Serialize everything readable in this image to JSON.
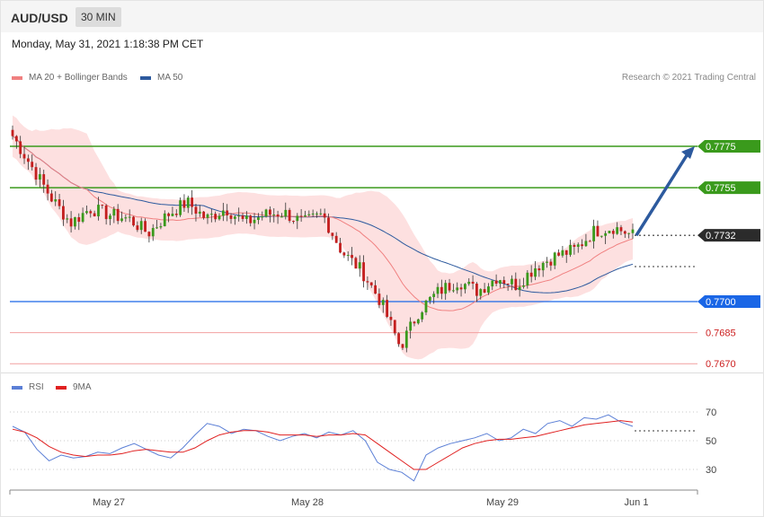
{
  "header": {
    "symbol": "AUD/USD",
    "timeframe": "30 MIN",
    "datetime": "Monday, May 31, 2021 1:18:38 PM CET"
  },
  "legend_main": [
    {
      "label": "MA 20 + Bollinger Bands",
      "color": "#f08080"
    },
    {
      "label": "MA 50",
      "color": "#2d5a9e"
    }
  ],
  "copyright": "Research © 2021 Trading Central",
  "legend_rsi": [
    {
      "label": "RSI",
      "color": "#5b7fd6"
    },
    {
      "label": "9MA",
      "color": "#e02020"
    }
  ],
  "colors": {
    "bull": "#3a9a1c",
    "bear": "#c41e1e",
    "band_fill": "#fde0e0",
    "ma20": "#f08080",
    "ma50": "#2d5a9e",
    "arrow": "#2d5a9e"
  },
  "chart_data": [
    {
      "type": "candlestick",
      "title": "AUD/USD 30 MIN",
      "ylim": [
        0.766,
        0.78
      ],
      "x_tick_labels": [
        "May 27",
        "May 28",
        "May 29",
        "Jun 1"
      ],
      "price_levels": [
        {
          "value": 0.7775,
          "label": "0.7775",
          "style": "resistance",
          "color": "#3a9a1c"
        },
        {
          "value": 0.7755,
          "label": "0.7755",
          "style": "resistance",
          "color": "#3a9a1c"
        },
        {
          "value": 0.7732,
          "label": "0.7732",
          "style": "current",
          "color": "#333333"
        },
        {
          "value": 0.77,
          "label": "0.7700",
          "style": "pivot",
          "color": "#1a66e6"
        },
        {
          "value": 0.7685,
          "label": "0.7685",
          "style": "support",
          "color": "#e05050"
        },
        {
          "value": 0.767,
          "label": "0.7670",
          "style": "support",
          "color": "#e05050"
        }
      ],
      "arrow": {
        "from_price": 0.7732,
        "to_price": 0.7775,
        "direction": "up"
      },
      "key_closes": [
        0.778,
        0.7765,
        0.775,
        0.7738,
        0.7745,
        0.7742,
        0.774,
        0.7733,
        0.7742,
        0.7748,
        0.774,
        0.7745,
        0.7738,
        0.7742,
        0.7743,
        0.7738,
        0.7742,
        0.7724,
        0.7715,
        0.77,
        0.7678,
        0.7696,
        0.7705,
        0.771,
        0.7705,
        0.7712,
        0.7708,
        0.7717,
        0.7722,
        0.7725,
        0.7734,
        0.7736,
        0.7732
      ]
    },
    {
      "type": "line",
      "title": "RSI",
      "ylim": [
        20,
        80
      ],
      "y_ticks": [
        30,
        50,
        70
      ],
      "series": [
        {
          "name": "RSI",
          "values": [
            60,
            56,
            44,
            36,
            40,
            38,
            39,
            42,
            41,
            45,
            48,
            44,
            40,
            38,
            45,
            54,
            62,
            60,
            55,
            58,
            57,
            53,
            50,
            53,
            55,
            52,
            56,
            54,
            57,
            50,
            35,
            30,
            28,
            22,
            40,
            45,
            48,
            50,
            52,
            55,
            50,
            52,
            58,
            55,
            62,
            64,
            60,
            66,
            65,
            68,
            63,
            60
          ]
        },
        {
          "name": "9MA",
          "values": [
            58,
            56,
            52,
            46,
            42,
            40,
            39,
            40,
            40,
            41,
            43,
            44,
            43,
            42,
            42,
            45,
            50,
            54,
            56,
            57,
            57,
            56,
            54,
            54,
            54,
            53,
            54,
            54,
            55,
            54,
            48,
            42,
            36,
            30,
            30,
            35,
            40,
            45,
            48,
            50,
            51,
            51,
            52,
            53,
            55,
            57,
            59,
            61,
            62,
            63,
            64,
            63
          ]
        }
      ]
    }
  ]
}
